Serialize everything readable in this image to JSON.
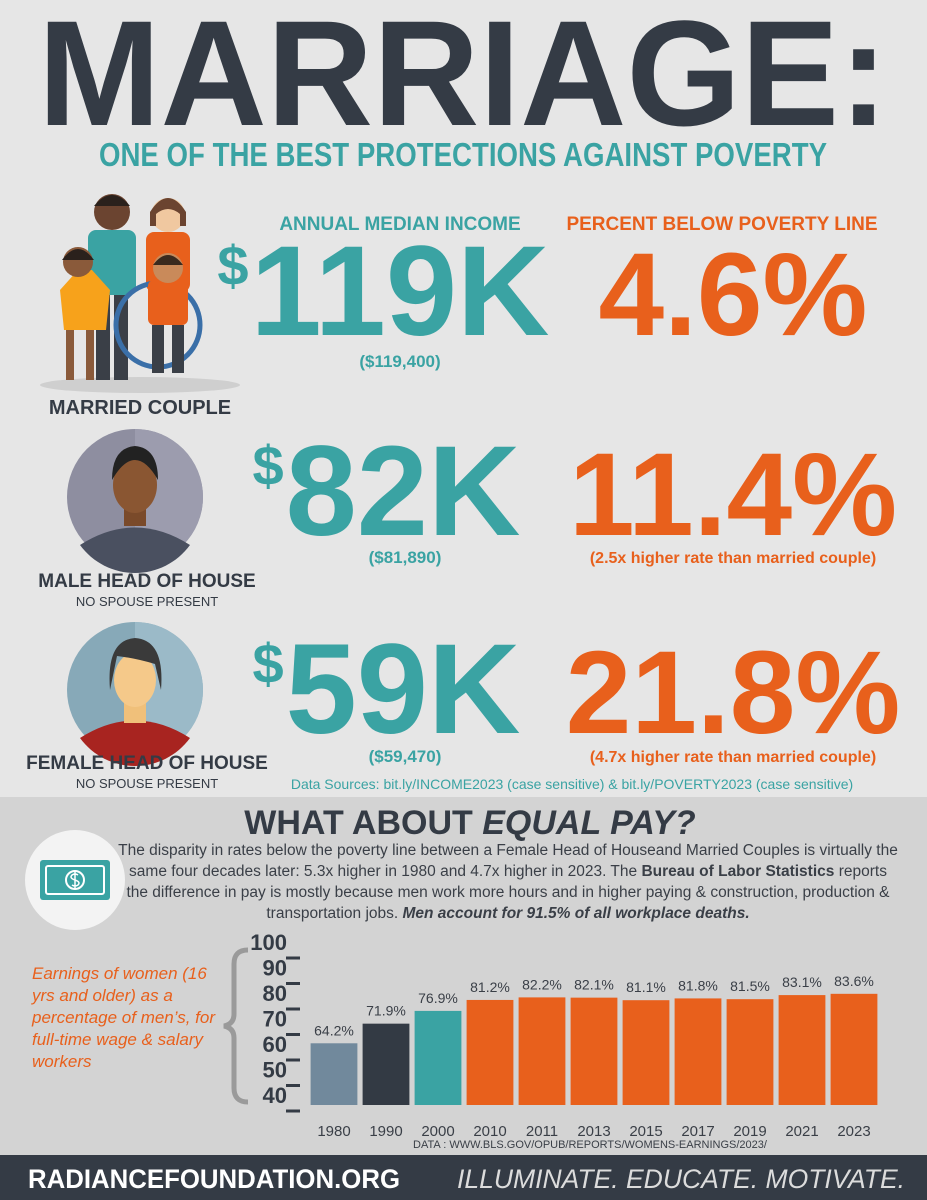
{
  "header": {
    "title": "MARRIAGE:",
    "subtitle": "ONE OF THE BEST PROTECTIONS AGAINST POVERTY"
  },
  "columns": {
    "income": "ANNUAL MEDIAN INCOME",
    "poverty": "PERCENT BELOW POVERTY LINE"
  },
  "households": [
    {
      "label": "MARRIED COUPLE",
      "currency": "$",
      "income": "119K",
      "income_exact": "($119,400)",
      "poverty": "4.6%"
    },
    {
      "label": "MALE HEAD OF HOUSE",
      "sublabel": "NO SPOUSE PRESENT",
      "currency": "$",
      "income": "82K",
      "income_exact": "($81,890)",
      "poverty": "11.4%",
      "poverty_note": "(2.5x higher rate than married couple)"
    },
    {
      "label": "FEMALE HEAD OF HOUSE",
      "sublabel": "NO SPOUSE PRESENT",
      "currency": "$",
      "income": "59K",
      "income_exact": "($59,470)",
      "poverty": "21.8%",
      "poverty_note": "(4.7x higher rate than married couple)"
    }
  ],
  "sources": "Data Sources: bit.ly/INCOME2023 (case sensitive) &  bit.ly/POVERTY2023 (case sensitive)",
  "equal_pay": {
    "title_prefix": "WHAT ABOUT ",
    "title_emphasis": "EQUAL PAY?",
    "body": [
      {
        "text": "The disparity in rates below the poverty line between a Female Head of Houseand Married Couples is virtually the same four decades later: 5.3x higher in 1980 and 4.7x higher in 2023. The ",
        "style": "normal"
      },
      {
        "text": "Bureau of Labor Statistics",
        "style": "bold"
      },
      {
        "text": " reports the difference in pay is mostly because men work more hours and in higher paying & construction, production & transportation jobs. ",
        "style": "normal"
      },
      {
        "text": "Men account for 91.5% of all workplace deaths.",
        "style": "bold-italic"
      }
    ]
  },
  "chart_data": {
    "type": "bar",
    "description": "Earnings of women (16 yrs and older) as a percentage of men’s, for full-time wage & salary workers",
    "categories": [
      "1980",
      "1990",
      "2000",
      "2010",
      "2011",
      "2013",
      "2015",
      "2017",
      "2019",
      "2021",
      "2023"
    ],
    "values": [
      64.2,
      71.9,
      76.9,
      81.2,
      82.2,
      82.1,
      81.1,
      81.8,
      81.5,
      83.1,
      83.6
    ],
    "value_labels": [
      "64.2%",
      "71.9%",
      "76.9%",
      "81.2%",
      "82.2%",
      "82.1%",
      "81.1%",
      "81.8%",
      "81.5%",
      "83.1%",
      "83.6%"
    ],
    "colors": [
      "#71899c",
      "#333a44",
      "#3aa3a3",
      "#e8601c",
      "#e8601c",
      "#e8601c",
      "#e8601c",
      "#e8601c",
      "#e8601c",
      "#e8601c",
      "#e8601c"
    ],
    "ylim": [
      40,
      100
    ],
    "yticks": [
      40,
      50,
      60,
      70,
      80,
      90,
      100
    ],
    "source": "DATA : WWW.BLS.GOV/OPUB/REPORTS/WOMENS-EARNINGS/2023/"
  },
  "footer": {
    "site": "RADIANCEFOUNDATION.ORG",
    "tagline": "ILLUMINATE. EDUCATE. MOTIVATE."
  }
}
